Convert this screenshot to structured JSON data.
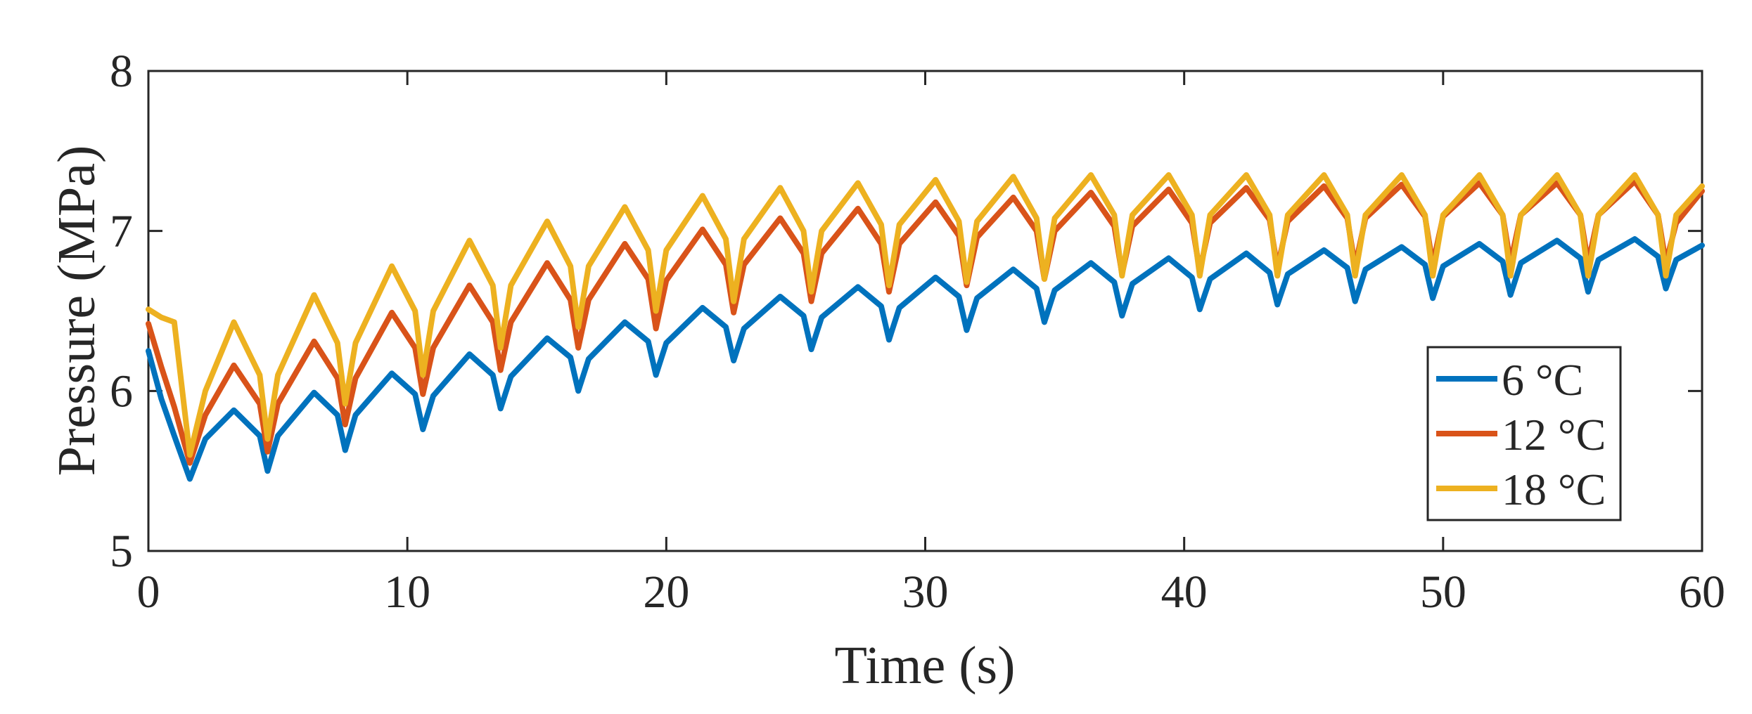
{
  "chart_data": {
    "type": "line",
    "title": "",
    "xlabel": "Time (s)",
    "ylabel": "Pressure (MPa)",
    "xlim": [
      0,
      60
    ],
    "ylim": [
      5,
      8
    ],
    "xticks": [
      0,
      10,
      20,
      30,
      40,
      50,
      60
    ],
    "yticks": [
      5,
      6,
      7,
      8
    ],
    "xtick_labels": [
      "0",
      "10",
      "20",
      "30",
      "40",
      "50",
      "60"
    ],
    "ytick_labels": [
      "5",
      "6",
      "7",
      "8"
    ],
    "grid": false,
    "legend_position": "lower-right",
    "series": [
      {
        "name": "6 °C",
        "color": "#0072BD",
        "x": [
          0,
          0.5,
          1.0,
          1.6,
          2.2,
          3.3,
          4.3,
          4.6,
          5.0,
          6.4,
          7.3,
          7.6,
          8.0,
          9.4,
          10.3,
          10.6,
          11.0,
          12.4,
          13.3,
          13.6,
          14.0,
          15.4,
          16.3,
          16.6,
          17.0,
          18.4,
          19.3,
          19.6,
          20.0,
          21.4,
          22.3,
          22.6,
          23.0,
          24.4,
          25.3,
          25.6,
          26.0,
          27.4,
          28.3,
          28.6,
          29.0,
          30.4,
          31.3,
          31.6,
          32.0,
          33.4,
          34.3,
          34.6,
          35.0,
          36.4,
          37.3,
          37.6,
          38.0,
          39.4,
          40.3,
          40.6,
          41.0,
          42.4,
          43.3,
          43.6,
          44.0,
          45.4,
          46.3,
          46.6,
          47.0,
          48.4,
          49.3,
          49.6,
          50.0,
          51.4,
          52.3,
          52.6,
          53.0,
          54.4,
          55.3,
          55.6,
          56.0,
          57.4,
          58.3,
          58.6,
          59.0,
          60.0
        ],
        "values": [
          6.25,
          5.95,
          5.72,
          5.45,
          5.7,
          5.88,
          5.72,
          5.5,
          5.72,
          5.99,
          5.85,
          5.63,
          5.85,
          6.11,
          5.98,
          5.76,
          5.97,
          6.23,
          6.1,
          5.89,
          6.09,
          6.33,
          6.21,
          6.0,
          6.2,
          6.43,
          6.31,
          6.1,
          6.3,
          6.52,
          6.4,
          6.19,
          6.39,
          6.59,
          6.47,
          6.26,
          6.46,
          6.65,
          6.53,
          6.32,
          6.52,
          6.71,
          6.59,
          6.38,
          6.58,
          6.76,
          6.64,
          6.43,
          6.63,
          6.8,
          6.68,
          6.47,
          6.67,
          6.83,
          6.71,
          6.51,
          6.7,
          6.86,
          6.74,
          6.54,
          6.73,
          6.88,
          6.77,
          6.56,
          6.76,
          6.9,
          6.79,
          6.58,
          6.78,
          6.92,
          6.81,
          6.6,
          6.8,
          6.94,
          6.83,
          6.62,
          6.82,
          6.95,
          6.84,
          6.64,
          6.82,
          6.91
        ]
      },
      {
        "name": "12 °C",
        "color": "#D95319",
        "x": [
          0,
          0.5,
          1.0,
          1.6,
          2.2,
          3.3,
          4.3,
          4.6,
          5.0,
          6.4,
          7.3,
          7.6,
          8.0,
          9.4,
          10.3,
          10.6,
          11.0,
          12.4,
          13.3,
          13.6,
          14.0,
          15.4,
          16.3,
          16.6,
          17.0,
          18.4,
          19.3,
          19.6,
          20.0,
          21.4,
          22.3,
          22.6,
          23.0,
          24.4,
          25.3,
          25.6,
          26.0,
          27.4,
          28.3,
          28.6,
          29.0,
          30.4,
          31.3,
          31.6,
          32.0,
          33.4,
          34.3,
          34.6,
          35.0,
          36.4,
          37.3,
          37.6,
          38.0,
          39.4,
          40.3,
          40.6,
          41.0,
          42.4,
          43.3,
          43.6,
          44.0,
          45.4,
          46.3,
          46.6,
          47.0,
          48.4,
          49.3,
          49.6,
          50.0,
          51.4,
          52.3,
          52.6,
          53.0,
          54.4,
          55.3,
          55.6,
          56.0,
          57.4,
          58.3,
          58.6,
          59.0,
          60.0
        ],
        "values": [
          6.42,
          6.15,
          5.9,
          5.55,
          5.85,
          6.16,
          5.92,
          5.62,
          5.92,
          6.31,
          6.08,
          5.79,
          6.08,
          6.49,
          6.27,
          5.98,
          6.27,
          6.66,
          6.43,
          6.13,
          6.43,
          6.8,
          6.57,
          6.27,
          6.57,
          6.92,
          6.7,
          6.39,
          6.69,
          7.01,
          6.79,
          6.49,
          6.79,
          7.08,
          6.86,
          6.56,
          6.86,
          7.14,
          6.92,
          6.62,
          6.92,
          7.18,
          6.97,
          6.66,
          6.96,
          7.21,
          7.0,
          6.7,
          7.0,
          7.24,
          7.03,
          6.73,
          7.03,
          7.26,
          7.05,
          6.75,
          7.05,
          7.27,
          7.07,
          6.77,
          7.06,
          7.28,
          7.08,
          6.78,
          7.08,
          7.29,
          7.09,
          6.79,
          7.09,
          7.3,
          7.1,
          6.8,
          7.1,
          7.3,
          7.1,
          6.8,
          7.1,
          7.31,
          7.1,
          6.8,
          7.05,
          7.25
        ]
      },
      {
        "name": "18 °C",
        "color": "#EDB120",
        "x": [
          0,
          0.5,
          1.0,
          1.6,
          2.2,
          3.3,
          4.3,
          4.6,
          5.0,
          6.4,
          7.3,
          7.6,
          8.0,
          9.4,
          10.3,
          10.6,
          11.0,
          12.4,
          13.3,
          13.6,
          14.0,
          15.4,
          16.3,
          16.6,
          17.0,
          18.4,
          19.3,
          19.6,
          20.0,
          21.4,
          22.3,
          22.6,
          23.0,
          24.4,
          25.3,
          25.6,
          26.0,
          27.4,
          28.3,
          28.6,
          29.0,
          30.4,
          31.3,
          31.6,
          32.0,
          33.4,
          34.3,
          34.6,
          35.0,
          36.4,
          37.3,
          37.6,
          38.0,
          39.4,
          40.3,
          40.6,
          41.0,
          42.4,
          43.3,
          43.6,
          44.0,
          45.4,
          46.3,
          46.6,
          47.0,
          48.4,
          49.3,
          49.6,
          50.0,
          51.4,
          52.3,
          52.6,
          53.0,
          54.4,
          55.3,
          55.6,
          56.0,
          57.4,
          58.3,
          58.6,
          59.0,
          60.0
        ],
        "values": [
          6.51,
          6.46,
          6.43,
          5.6,
          6.0,
          6.43,
          6.1,
          5.7,
          6.1,
          6.6,
          6.3,
          5.92,
          6.3,
          6.78,
          6.5,
          6.1,
          6.5,
          6.94,
          6.66,
          6.27,
          6.66,
          7.06,
          6.78,
          6.4,
          6.78,
          7.15,
          6.88,
          6.5,
          6.88,
          7.22,
          6.95,
          6.56,
          6.95,
          7.27,
          7.0,
          6.62,
          7.0,
          7.3,
          7.04,
          6.66,
          7.04,
          7.32,
          7.06,
          6.68,
          7.06,
          7.34,
          7.08,
          6.7,
          7.08,
          7.35,
          7.1,
          6.72,
          7.1,
          7.35,
          7.1,
          6.72,
          7.1,
          7.35,
          7.1,
          6.72,
          7.1,
          7.35,
          7.1,
          6.72,
          7.1,
          7.35,
          7.1,
          6.72,
          7.1,
          7.35,
          7.1,
          6.72,
          7.1,
          7.35,
          7.1,
          6.72,
          7.1,
          7.35,
          7.1,
          6.72,
          7.1,
          7.28
        ]
      }
    ]
  }
}
